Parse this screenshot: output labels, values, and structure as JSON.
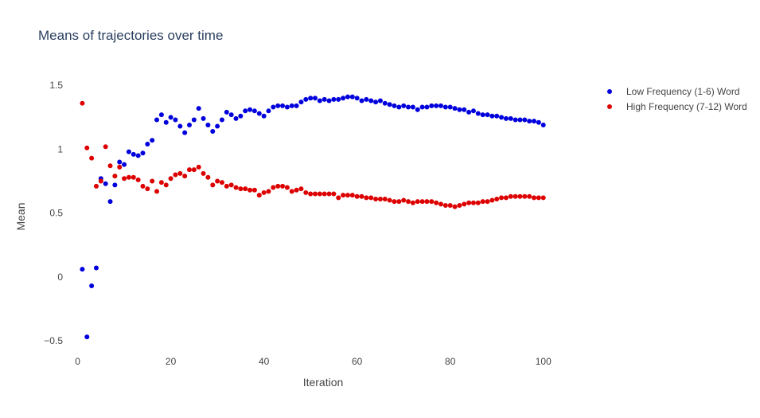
{
  "chart_data": {
    "type": "scatter",
    "title": "Means of trajectories over time",
    "xlabel": "Iteration",
    "ylabel": "Mean",
    "xlim": [
      -3,
      105
    ],
    "ylim": [
      -0.65,
      1.62
    ],
    "xticks": [
      0,
      20,
      40,
      60,
      80,
      100
    ],
    "xtick_labels": [
      "0",
      "20",
      "40",
      "60",
      "80",
      "100"
    ],
    "yticks": [
      -0.5,
      0,
      0.5,
      1,
      1.5
    ],
    "ytick_labels": [
      "−0.5",
      "0",
      "0.5",
      "1",
      "1.5"
    ],
    "grid": false,
    "legend_position": "top-right",
    "series": [
      {
        "name": "Low Frequency (1-6) Word",
        "color": "#0000dd",
        "x": [
          1,
          2,
          3,
          4,
          5,
          6,
          7,
          8,
          9,
          10,
          11,
          12,
          13,
          14,
          15,
          16,
          17,
          18,
          19,
          20,
          21,
          22,
          23,
          24,
          25,
          26,
          27,
          28,
          29,
          30,
          31,
          32,
          33,
          34,
          35,
          36,
          37,
          38,
          39,
          40,
          41,
          42,
          43,
          44,
          45,
          46,
          47,
          48,
          49,
          50,
          51,
          52,
          53,
          54,
          55,
          56,
          57,
          58,
          59,
          60,
          61,
          62,
          63,
          64,
          65,
          66,
          67,
          68,
          69,
          70,
          71,
          72,
          73,
          74,
          75,
          76,
          77,
          78,
          79,
          80,
          81,
          82,
          83,
          84,
          85,
          86,
          87,
          88,
          89,
          90,
          91,
          92,
          93,
          94,
          95,
          96,
          97,
          98,
          99,
          100
        ],
        "y": [
          0.06,
          -0.47,
          -0.07,
          0.07,
          0.77,
          0.73,
          0.59,
          0.72,
          0.9,
          0.88,
          0.98,
          0.96,
          0.95,
          0.97,
          1.04,
          1.07,
          1.23,
          1.27,
          1.21,
          1.25,
          1.23,
          1.18,
          1.13,
          1.19,
          1.23,
          1.32,
          1.24,
          1.19,
          1.14,
          1.18,
          1.23,
          1.29,
          1.27,
          1.24,
          1.26,
          1.3,
          1.31,
          1.3,
          1.28,
          1.26,
          1.3,
          1.33,
          1.34,
          1.34,
          1.33,
          1.34,
          1.34,
          1.37,
          1.39,
          1.4,
          1.4,
          1.38,
          1.39,
          1.38,
          1.39,
          1.39,
          1.4,
          1.41,
          1.41,
          1.4,
          1.38,
          1.39,
          1.38,
          1.37,
          1.38,
          1.36,
          1.35,
          1.34,
          1.33,
          1.34,
          1.33,
          1.33,
          1.31,
          1.33,
          1.33,
          1.34,
          1.34,
          1.34,
          1.33,
          1.33,
          1.32,
          1.31,
          1.31,
          1.29,
          1.3,
          1.28,
          1.27,
          1.27,
          1.26,
          1.26,
          1.25,
          1.24,
          1.24,
          1.23,
          1.23,
          1.23,
          1.22,
          1.22,
          1.21,
          1.19
        ]
      },
      {
        "name": "High Frequency (7-12) Word",
        "color": "#dd0000",
        "x": [
          1,
          2,
          3,
          4,
          5,
          6,
          7,
          8,
          9,
          10,
          11,
          12,
          13,
          14,
          15,
          16,
          17,
          18,
          19,
          20,
          21,
          22,
          23,
          24,
          25,
          26,
          27,
          28,
          29,
          30,
          31,
          32,
          33,
          34,
          35,
          36,
          37,
          38,
          39,
          40,
          41,
          42,
          43,
          44,
          45,
          46,
          47,
          48,
          49,
          50,
          51,
          52,
          53,
          54,
          55,
          56,
          57,
          58,
          59,
          60,
          61,
          62,
          63,
          64,
          65,
          66,
          67,
          68,
          69,
          70,
          71,
          72,
          73,
          74,
          75,
          76,
          77,
          78,
          79,
          80,
          81,
          82,
          83,
          84,
          85,
          86,
          87,
          88,
          89,
          90,
          91,
          92,
          93,
          94,
          95,
          96,
          97,
          98,
          99,
          100
        ],
        "y": [
          1.36,
          1.01,
          0.93,
          0.71,
          0.75,
          1.02,
          0.87,
          0.79,
          0.86,
          0.77,
          0.78,
          0.78,
          0.76,
          0.71,
          0.69,
          0.75,
          0.67,
          0.74,
          0.72,
          0.77,
          0.8,
          0.81,
          0.79,
          0.84,
          0.84,
          0.86,
          0.81,
          0.78,
          0.72,
          0.75,
          0.74,
          0.71,
          0.72,
          0.7,
          0.69,
          0.69,
          0.68,
          0.68,
          0.64,
          0.66,
          0.67,
          0.7,
          0.71,
          0.71,
          0.7,
          0.67,
          0.68,
          0.69,
          0.66,
          0.65,
          0.65,
          0.65,
          0.65,
          0.65,
          0.65,
          0.62,
          0.64,
          0.64,
          0.64,
          0.63,
          0.63,
          0.62,
          0.62,
          0.61,
          0.61,
          0.61,
          0.6,
          0.59,
          0.59,
          0.6,
          0.59,
          0.58,
          0.59,
          0.59,
          0.59,
          0.59,
          0.58,
          0.57,
          0.56,
          0.56,
          0.55,
          0.56,
          0.57,
          0.58,
          0.58,
          0.58,
          0.59,
          0.59,
          0.6,
          0.61,
          0.62,
          0.62,
          0.63,
          0.63,
          0.63,
          0.63,
          0.63,
          0.62,
          0.62,
          0.62
        ]
      }
    ]
  }
}
